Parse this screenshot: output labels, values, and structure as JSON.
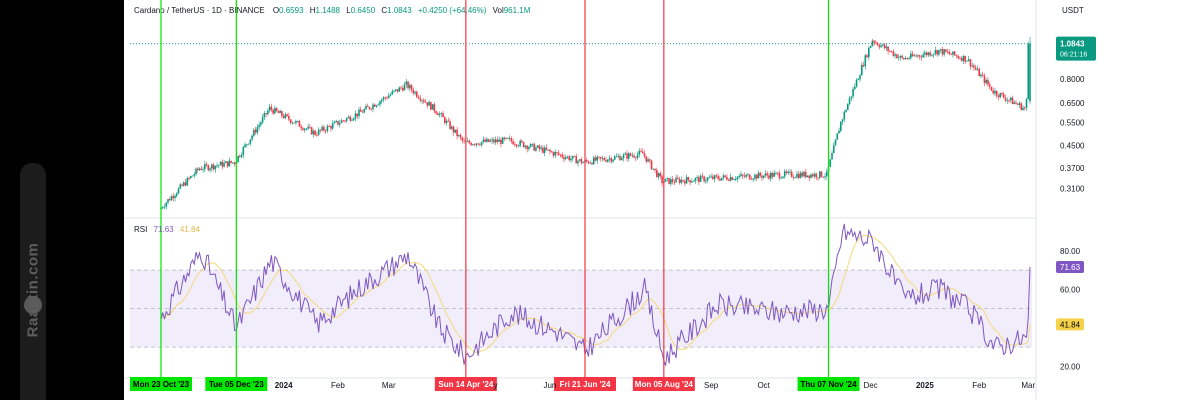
{
  "watermark": {
    "text": "Raastin.com",
    "icon": "raastin-logo-icon"
  },
  "header": {
    "symbol": "Cardano / TetherUS · 1D · BINANCE",
    "open_label": "O",
    "open": "0.6593",
    "high_label": "H",
    "high": "1.1488",
    "low_label": "L",
    "low": "0.6450",
    "close_label": "C",
    "close": "1.0843",
    "change": "+0.4250 (+64.46%)",
    "volume_label": "Vol",
    "volume": "961.1M",
    "currency": "USDT"
  },
  "price_panel": {
    "last_price": "1.0843",
    "countdown": "06:21:16",
    "scale": "log",
    "ticks": [
      "0.8000",
      "0.6500",
      "0.5500",
      "0.4500",
      "0.3700",
      "0.3100"
    ],
    "tick_values": [
      0.8,
      0.65,
      0.55,
      0.45,
      0.37,
      0.31
    ],
    "price_range": [
      0.245,
      1.33
    ],
    "colors": {
      "up": "#089981",
      "down": "#f23645",
      "badge": "#089981"
    }
  },
  "rsi_panel": {
    "label": "RSI",
    "rsi_value": "71.63",
    "ma_value": "41.84",
    "ticks": [
      "80.00",
      "60.00",
      "20.00"
    ],
    "tick_values": [
      80,
      60,
      20
    ],
    "range": [
      15,
      95
    ],
    "band": [
      30,
      70
    ],
    "midline": 50,
    "colors": {
      "rsi": "#7e57c2",
      "ma": "#f5d97a",
      "band": "#f1edfb"
    }
  },
  "x_axis": {
    "labels": [
      "2024",
      "Feb",
      "Mar",
      "y",
      "Jun",
      "Sep",
      "Oct",
      "Dec",
      "2025",
      "Feb",
      "Mar"
    ],
    "bold": [
      "2024",
      "2025"
    ]
  },
  "markers": [
    {
      "label": "Mon 23 Oct '23",
      "color": "#00e600",
      "text_color": "#000000"
    },
    {
      "label": "Tue 05 Dec '23",
      "color": "#00e600",
      "text_color": "#000000"
    },
    {
      "label": "Sun 14 Apr '24",
      "color": "#f23645",
      "text_color": "#ffffff"
    },
    {
      "label": "Fri 21 Jun '24",
      "color": "#f23645",
      "text_color": "#ffffff"
    },
    {
      "label": "Mon 05 Aug '24",
      "color": "#f23645",
      "text_color": "#ffffff"
    },
    {
      "label": "Thu 07 Nov '24",
      "color": "#00e600",
      "text_color": "#000000"
    }
  ],
  "chart_data": {
    "type": "line",
    "title": "Cardano / TetherUS · 1D · BINANCE",
    "x": [
      "2023-10-23",
      "2023-11-15",
      "2023-12-05",
      "2023-12-25",
      "2024-01-20",
      "2024-02-15",
      "2024-03-12",
      "2024-03-30",
      "2024-04-14",
      "2024-05-10",
      "2024-06-05",
      "2024-06-21",
      "2024-07-25",
      "2024-08-05",
      "2024-09-05",
      "2024-10-10",
      "2024-11-07",
      "2024-11-15",
      "2024-12-03",
      "2024-12-20",
      "2025-01-10",
      "2025-01-26",
      "2025-02-10",
      "2025-02-28",
      "2025-03-01",
      "2025-03-02"
    ],
    "series": [
      {
        "values": [
          0.26,
          0.37,
          0.39,
          0.62,
          0.5,
          0.6,
          0.76,
          0.6,
          0.46,
          0.47,
          0.42,
          0.39,
          0.42,
          0.33,
          0.34,
          0.35,
          0.35,
          0.55,
          1.12,
          0.95,
          1.02,
          0.95,
          0.72,
          0.62,
          0.66,
          1.0843
        ]
      },
      {
        "values": [
          45,
          80,
          40,
          75,
          42,
          62,
          78,
          40,
          25,
          48,
          38,
          28,
          60,
          24,
          52,
          48,
          50,
          90,
          85,
          55,
          60,
          50,
          30,
          35,
          42,
          71.63
        ]
      }
    ],
    "ylim_price": [
      0.245,
      1.33
    ],
    "ylim_rsi": [
      15,
      95
    ]
  }
}
